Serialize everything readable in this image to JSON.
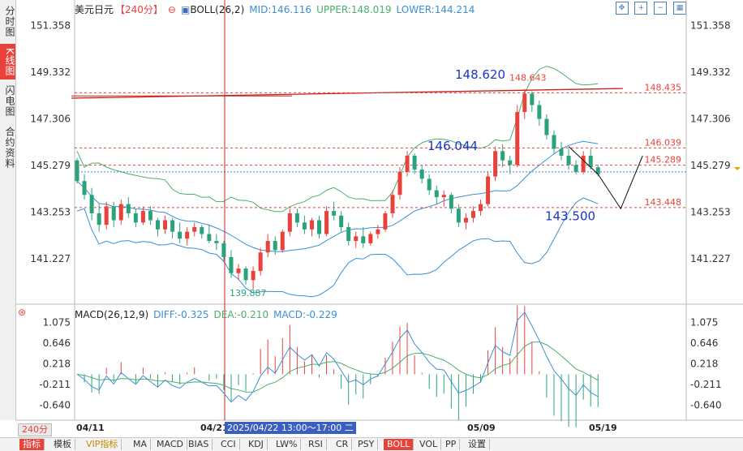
{
  "sidebar": {
    "tabs": [
      {
        "label": "分时图",
        "active": false
      },
      {
        "label": "K线图",
        "active": true
      },
      {
        "label": "闪电图",
        "active": false
      },
      {
        "label": "合约资料",
        "active": false
      }
    ]
  },
  "legend": {
    "symbol": "美元日元",
    "period": "【240分】",
    "indicator": "BOLL(26,2)",
    "mid": "MID:146.116",
    "upper": "UPPER:148.019",
    "lower": "LOWER:144.214"
  },
  "price_axis": [
    "151.358",
    "149.332",
    "147.306",
    "145.279",
    "143.253",
    "141.227"
  ],
  "macd_axis": [
    "1.075",
    "0.646",
    "0.218",
    "-0.211",
    "-0.640"
  ],
  "macd_legend": {
    "name": "MACD(26,12,9)",
    "diff": "DIFF:-0.325",
    "dea": "DEA:-0.210",
    "macd": "MACD:-0.229"
  },
  "annotations": {
    "high_label": "148.620",
    "high_tick": "148.643",
    "level_148435": "148.435",
    "level_146039": "146.039",
    "level_145289": "145.289",
    "level_143448": "143.448",
    "mid_label": "146.044",
    "target_label": "143.500",
    "low_label": "139.887"
  },
  "x_axis": {
    "period_badge": "240分",
    "labels": [
      "04/11",
      "04/21",
      "05/09",
      "05/19"
    ],
    "crosshair_time": "2025/04/22 13:00～17:00 二"
  },
  "bottom_tabs": [
    {
      "label": "指标",
      "active": true
    },
    {
      "label": "模板",
      "active": false
    },
    {
      "label": "VIP指标",
      "active": false
    },
    {
      "label": "MA",
      "active": false
    },
    {
      "label": "MACD",
      "active": false
    },
    {
      "label": "BIAS",
      "active": false
    },
    {
      "label": "CCI",
      "active": false
    },
    {
      "label": "KDJ",
      "active": false
    },
    {
      "label": "LW%",
      "active": false
    },
    {
      "label": "RSI",
      "active": false
    },
    {
      "label": "CR",
      "active": false
    },
    {
      "label": "PSY",
      "active": false
    },
    {
      "label": "BOLL",
      "active": true
    },
    {
      "label": "VOL",
      "active": false
    },
    {
      "label": "PP",
      "active": false
    },
    {
      "label": "设置",
      "active": false
    }
  ],
  "colors": {
    "up": "#e8423a",
    "down": "#2aa37a",
    "accent": "#e8423a"
  },
  "chart_data": {
    "type": "candlestick",
    "ylim": [
      139.5,
      151.9
    ],
    "candles_approx": [
      [
        145.5,
        145.6,
        144.5,
        144.6
      ],
      [
        144.6,
        144.9,
        143.8,
        144.0
      ],
      [
        144.0,
        144.3,
        142.9,
        143.2
      ],
      [
        143.2,
        143.6,
        142.4,
        142.7
      ],
      [
        142.7,
        143.7,
        142.5,
        143.5
      ],
      [
        143.5,
        143.7,
        142.6,
        142.9
      ],
      [
        142.9,
        143.8,
        142.7,
        143.6
      ],
      [
        143.6,
        143.9,
        143.0,
        143.2
      ],
      [
        143.2,
        143.4,
        142.6,
        142.8
      ],
      [
        142.8,
        143.5,
        142.7,
        143.3
      ],
      [
        143.3,
        143.5,
        142.7,
        142.9
      ],
      [
        142.9,
        143.0,
        142.2,
        142.5
      ],
      [
        142.5,
        143.1,
        142.3,
        142.9
      ],
      [
        142.9,
        143.0,
        142.1,
        142.4
      ],
      [
        142.4,
        142.8,
        141.9,
        142.1
      ],
      [
        142.1,
        142.6,
        141.8,
        142.4
      ],
      [
        142.4,
        142.8,
        142.2,
        142.6
      ],
      [
        142.6,
        142.7,
        142.1,
        142.3
      ],
      [
        142.3,
        142.7,
        141.9,
        142.0
      ],
      [
        142.0,
        142.3,
        141.6,
        141.9
      ],
      [
        141.9,
        142.0,
        141.1,
        141.3
      ],
      [
        141.3,
        141.6,
        140.4,
        140.6
      ],
      [
        140.6,
        141.0,
        140.3,
        140.8
      ],
      [
        140.8,
        140.9,
        140.1,
        140.3
      ],
      [
        140.3,
        140.9,
        139.9,
        140.7
      ],
      [
        140.7,
        141.7,
        140.5,
        141.5
      ],
      [
        141.5,
        142.3,
        141.3,
        142.0
      ],
      [
        142.0,
        142.2,
        141.4,
        141.6
      ],
      [
        141.6,
        142.5,
        141.5,
        142.4
      ],
      [
        142.4,
        143.4,
        142.2,
        143.2
      ],
      [
        143.2,
        143.4,
        142.6,
        142.8
      ],
      [
        142.8,
        143.1,
        142.3,
        142.5
      ],
      [
        142.5,
        143.0,
        142.2,
        142.9
      ],
      [
        142.9,
        143.1,
        142.1,
        142.3
      ],
      [
        142.3,
        143.5,
        142.2,
        143.3
      ],
      [
        143.3,
        143.7,
        142.9,
        143.1
      ],
      [
        143.1,
        143.3,
        142.4,
        142.6
      ],
      [
        142.6,
        142.8,
        141.8,
        142.0
      ],
      [
        142.0,
        142.4,
        141.7,
        142.2
      ],
      [
        142.2,
        142.6,
        141.7,
        141.9
      ],
      [
        141.9,
        142.4,
        141.8,
        142.3
      ],
      [
        142.3,
        142.7,
        142.1,
        142.5
      ],
      [
        142.5,
        143.3,
        142.4,
        143.2
      ],
      [
        143.2,
        144.2,
        143.0,
        144.0
      ],
      [
        144.0,
        145.2,
        143.8,
        145.0
      ],
      [
        145.0,
        145.9,
        144.8,
        145.7
      ],
      [
        145.7,
        145.8,
        144.9,
        145.1
      ],
      [
        145.1,
        145.3,
        144.5,
        144.7
      ],
      [
        144.7,
        144.9,
        144.0,
        144.2
      ],
      [
        144.2,
        144.4,
        143.6,
        143.9
      ],
      [
        143.9,
        144.2,
        143.5,
        144.0
      ],
      [
        144.0,
        144.1,
        143.2,
        143.4
      ],
      [
        143.4,
        143.6,
        142.6,
        142.8
      ],
      [
        142.8,
        143.2,
        142.5,
        143.0
      ],
      [
        143.0,
        143.5,
        142.8,
        143.3
      ],
      [
        143.3,
        143.8,
        143.1,
        143.6
      ],
      [
        143.6,
        145.0,
        143.5,
        144.8
      ],
      [
        144.8,
        146.1,
        144.6,
        145.9
      ],
      [
        145.9,
        146.2,
        145.2,
        145.5
      ],
      [
        145.5,
        145.7,
        144.9,
        145.3
      ],
      [
        145.3,
        147.9,
        145.2,
        147.6
      ],
      [
        147.6,
        148.6,
        147.3,
        148.4
      ],
      [
        148.4,
        148.5,
        147.6,
        147.9
      ],
      [
        147.9,
        148.1,
        147.0,
        147.3
      ],
      [
        147.3,
        147.5,
        146.4,
        146.6
      ],
      [
        146.6,
        146.8,
        145.8,
        146.0
      ],
      [
        146.0,
        146.3,
        145.5,
        145.7
      ],
      [
        145.7,
        146.0,
        145.1,
        145.3
      ],
      [
        145.3,
        145.5,
        144.9,
        145.0
      ],
      [
        145.0,
        145.9,
        144.9,
        145.7
      ],
      [
        145.7,
        146.0,
        145.1,
        145.2
      ],
      [
        145.2,
        145.3,
        144.8,
        144.9
      ]
    ]
  }
}
